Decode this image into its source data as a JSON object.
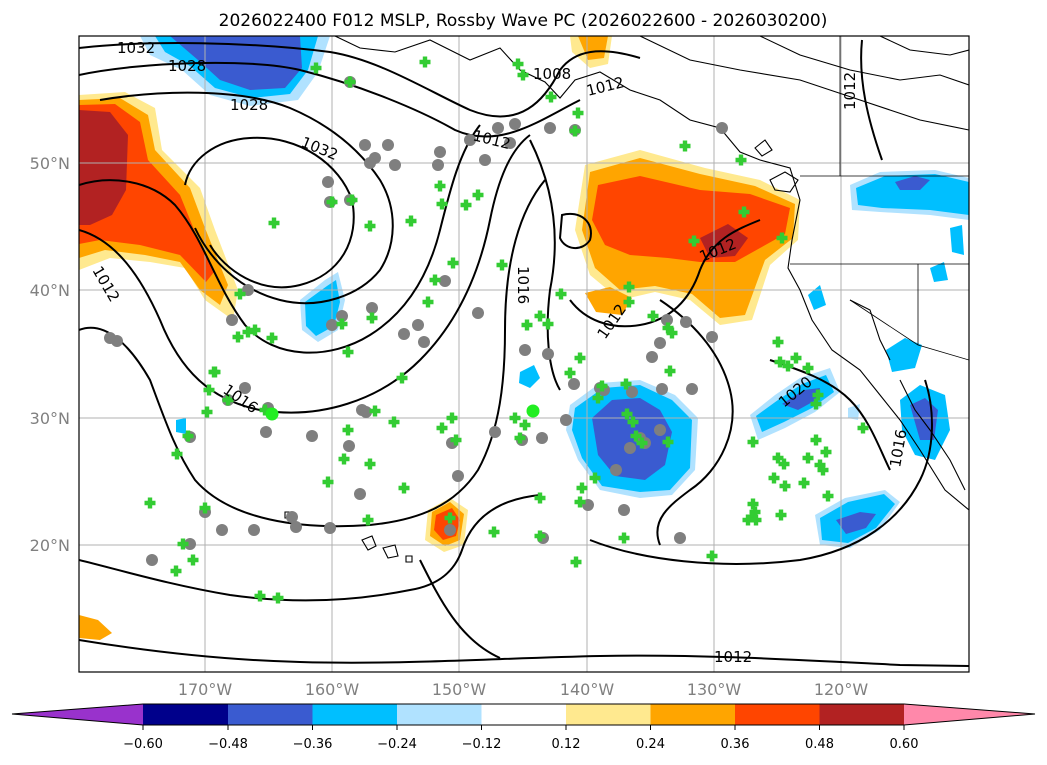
{
  "title": "2026022400 F012 MSLP, Rossby Wave PC (2026022600 - 2026030200)",
  "latitude_labels": [
    "50°N",
    "40°N",
    "30°N",
    "20°N"
  ],
  "longitude_labels": [
    "170°W",
    "160°W",
    "150°W",
    "140°W",
    "130°W",
    "120°W"
  ],
  "isobar_labels": [
    "1032",
    "1028",
    "1028",
    "1008",
    "1012",
    "1012",
    "1032",
    "1012",
    "1016",
    "1012",
    "1012",
    "1016",
    "1012",
    "1012",
    "1020",
    "1016"
  ],
  "colorbar": {
    "tick_labels": [
      "−0.60",
      "−0.48",
      "−0.36",
      "−0.24",
      "−0.12",
      "0.12",
      "0.24",
      "0.36",
      "0.48",
      "0.60"
    ],
    "colors": [
      "#9932CC",
      "#00008B",
      "#3A5BD0",
      "#00BFFF",
      "#B0E2FF",
      "#FFFFFF",
      "#FFE98F",
      "#FFA500",
      "#FF4500",
      "#B22222",
      "#FF88AA"
    ]
  },
  "shading_colors": {
    "strong_positive": "#B22222",
    "positive": "#FF4500",
    "moderate_positive": "#FFA500",
    "weak_positive": "#FFE98F",
    "weak_negative": "#B0E2FF",
    "moderate_negative": "#00BFFF",
    "negative": "#3A5BD0",
    "strong_negative": "#00008B"
  },
  "marker_colors": {
    "cross": "#33CC33",
    "circle": "#7F7F7F",
    "dot": "#22EE22"
  }
}
